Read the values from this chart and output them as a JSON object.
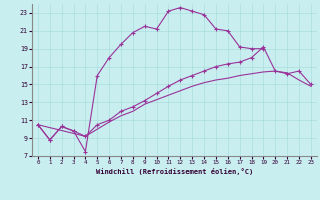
{
  "bg_color": "#c8eef0",
  "grid_color": "#aadddd",
  "line_color": "#993399",
  "xlabel": "Windchill (Refroidissement éolien,°C)",
  "xlim": [
    -0.5,
    23.5
  ],
  "ylim": [
    7,
    24
  ],
  "xticks": [
    0,
    1,
    2,
    3,
    4,
    5,
    6,
    7,
    8,
    9,
    10,
    11,
    12,
    13,
    14,
    15,
    16,
    17,
    18,
    19,
    20,
    21,
    22,
    23
  ],
  "yticks": [
    7,
    9,
    11,
    13,
    15,
    17,
    19,
    21,
    23
  ],
  "curve1_x": [
    0,
    1,
    2,
    3,
    4,
    5,
    6,
    7,
    8,
    9,
    10,
    11,
    12,
    13,
    14,
    15,
    16,
    17,
    18,
    19
  ],
  "curve1_y": [
    10.5,
    8.8,
    10.3,
    9.8,
    7.5,
    16.0,
    18.0,
    19.5,
    20.8,
    21.5,
    21.2,
    23.2,
    23.6,
    23.2,
    22.8,
    21.2,
    21.0,
    19.2,
    19.0,
    19.0
  ],
  "curve2_x": [
    0,
    1,
    2,
    3,
    4,
    5,
    6,
    7,
    8,
    9,
    10,
    11,
    12,
    13,
    14,
    15,
    16,
    17,
    18,
    19,
    20,
    21,
    22,
    23
  ],
  "curve2_y": [
    10.5,
    8.8,
    10.3,
    9.8,
    9.2,
    10.5,
    11.0,
    12.0,
    12.5,
    13.2,
    14.0,
    14.8,
    15.5,
    16.0,
    16.5,
    17.0,
    17.3,
    17.5,
    18.0,
    19.2,
    16.5,
    16.2,
    16.5,
    15.0
  ],
  "curve3_x": [
    0,
    4,
    5,
    6,
    7,
    8,
    9,
    10,
    11,
    12,
    13,
    14,
    15,
    16,
    17,
    18,
    19,
    20,
    21,
    22,
    23
  ],
  "curve3_y": [
    10.5,
    9.2,
    10.0,
    10.8,
    11.5,
    12.0,
    12.8,
    13.3,
    13.8,
    14.3,
    14.8,
    15.2,
    15.5,
    15.7,
    16.0,
    16.2,
    16.4,
    16.5,
    16.3,
    15.5,
    14.8
  ],
  "marker": "+"
}
